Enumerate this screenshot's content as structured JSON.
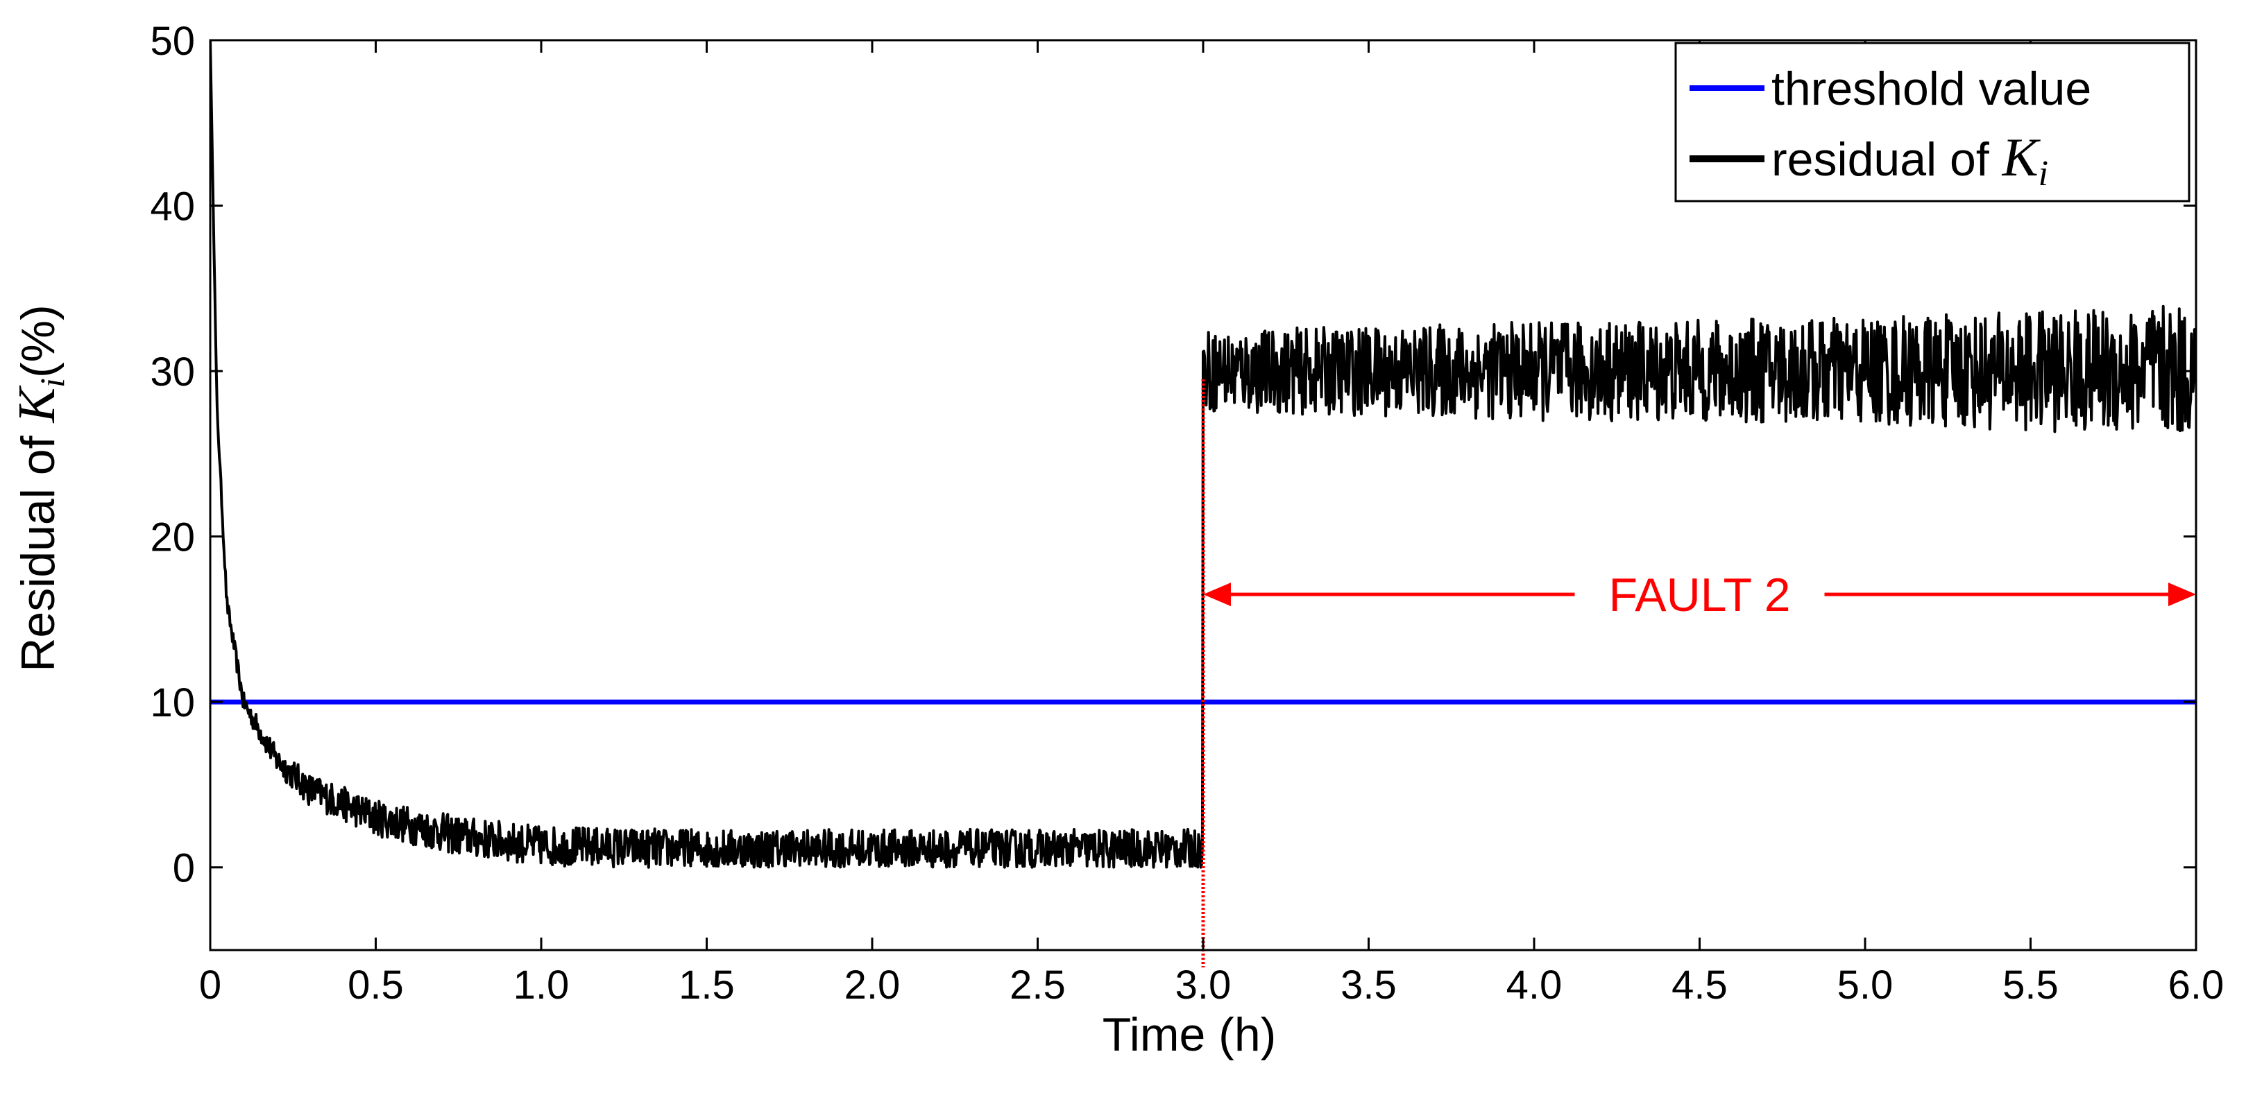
{
  "chart_data": {
    "type": "line",
    "title": "",
    "xlabel": "Time (h)",
    "ylabel": {
      "prefix": "Residual of ",
      "symbol": "K",
      "subscript": "i",
      "suffix": "(%)"
    },
    "xlim": [
      0,
      6.0
    ],
    "ylim": [
      -5,
      50
    ],
    "x_ticks": [
      0,
      0.5,
      1.0,
      1.5,
      2.0,
      2.5,
      3.0,
      3.5,
      4.0,
      4.5,
      5.0,
      5.5,
      6.0
    ],
    "x_tick_labels": [
      "0",
      "0.5",
      "1.0",
      "1.5",
      "2.0",
      "2.5",
      "3.0",
      "3.5",
      "4.0",
      "4.5",
      "5.0",
      "5.5",
      "6.0"
    ],
    "y_ticks": [
      0,
      10,
      20,
      30,
      40,
      50
    ],
    "y_tick_labels": [
      "0",
      "10",
      "20",
      "30",
      "40",
      "50"
    ],
    "grid": false,
    "legend": {
      "placement": "top-right",
      "entries": [
        {
          "label": "threshold value",
          "color": "#0000ff"
        },
        {
          "label_prefix": "residual of ",
          "symbol": "K",
          "subscript": "i",
          "color": "#000000"
        }
      ]
    },
    "series": [
      {
        "name": "threshold value",
        "color": "#0000ff",
        "x": [
          0,
          6.0
        ],
        "y": [
          10,
          10
        ]
      },
      {
        "name": "residual of Ki",
        "color": "#000000",
        "noisy": true,
        "x": [
          0,
          0.02,
          0.05,
          0.1,
          0.2,
          0.3,
          0.5,
          0.75,
          1.0,
          1.5,
          2.0,
          2.5,
          2.99,
          3.0,
          3.5,
          4.0,
          4.5,
          5.0,
          5.5,
          6.0
        ],
        "y": [
          50,
          28,
          16,
          10,
          6.5,
          4.7,
          3.0,
          1.9,
          1.3,
          1.1,
          1.1,
          1.1,
          1.1,
          30,
          30,
          30,
          30,
          30,
          30,
          30
        ],
        "noise_amplitude": [
          0,
          0.3,
          0.5,
          0.6,
          0.8,
          1.0,
          1.1,
          1.2,
          1.2,
          1.2,
          1.2,
          1.2,
          1.2,
          2.5,
          2.7,
          3.0,
          3.1,
          3.3,
          3.6,
          4.0
        ]
      }
    ],
    "annotations": [
      {
        "type": "vline",
        "x": 3.0,
        "style": "dotted",
        "color": "#ff0000"
      },
      {
        "type": "double-arrow",
        "text": "FAULT 2",
        "x_start": 3.0,
        "x_end": 6.0,
        "y": 16.5,
        "color": "#ff0000"
      }
    ]
  }
}
